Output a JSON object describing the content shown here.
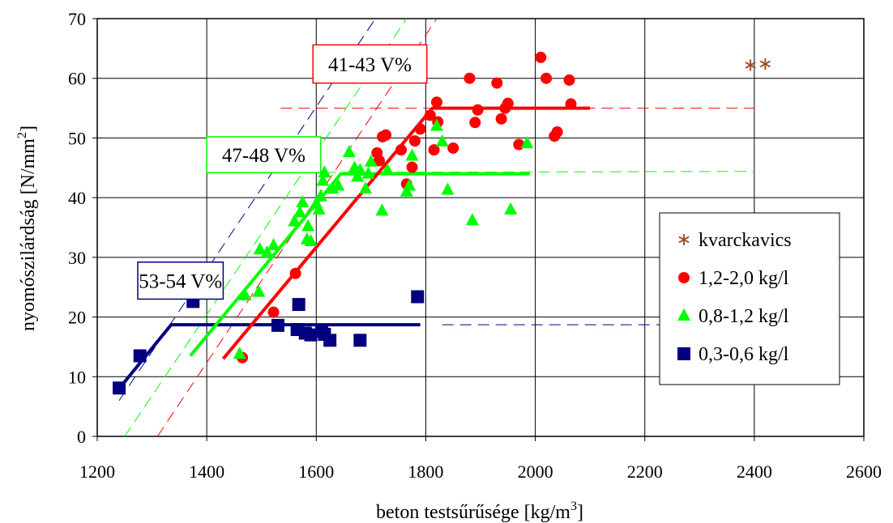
{
  "chart_data": {
    "type": "scatter",
    "xlabel": "beton testsűrűsége [kg/m",
    "xlabel_sup": "3",
    "xlabel_end": "]",
    "ylabel": "nyomószilárdság [N/mm",
    "ylabel_sup": "2",
    "ylabel_end": "]",
    "xlim": [
      1200,
      2600
    ],
    "ylim": [
      0,
      70
    ],
    "x_ticks": [
      "1200",
      "1400",
      "1600",
      "1800",
      "2000",
      "2200",
      "2400",
      "2600"
    ],
    "y_ticks": [
      "0",
      "10",
      "20",
      "30",
      "40",
      "50",
      "60",
      "70"
    ],
    "grid": true,
    "legend_position": "right",
    "series": [
      {
        "name": "kvarckavics",
        "marker": "asterisk",
        "color": "#a0522d",
        "points": [
          [
            2393,
            62.2
          ],
          [
            2420,
            62.4
          ]
        ]
      },
      {
        "name": "1,2-2,0 kg/l",
        "marker": "circle",
        "color": "#ff0000",
        "points": [
          [
            1465,
            13.2
          ],
          [
            1522,
            20.8
          ],
          [
            1562,
            27.3
          ],
          [
            1711,
            47.5
          ],
          [
            1715,
            46.2
          ],
          [
            1721,
            50.2
          ],
          [
            1727,
            50.5
          ],
          [
            1755,
            48.0
          ],
          [
            1765,
            42.3
          ],
          [
            1775,
            45.1
          ],
          [
            1780,
            49.5
          ],
          [
            1790,
            51.5
          ],
          [
            1808,
            53.8
          ],
          [
            1815,
            48.0
          ],
          [
            1820,
            56.0
          ],
          [
            1822,
            52.7
          ],
          [
            1850,
            48.3
          ],
          [
            1880,
            60.0
          ],
          [
            1890,
            52.6
          ],
          [
            1895,
            54.7
          ],
          [
            1930,
            59.2
          ],
          [
            1938,
            53.2
          ],
          [
            1945,
            55.0
          ],
          [
            1950,
            55.8
          ],
          [
            1970,
            48.9
          ],
          [
            2010,
            63.5
          ],
          [
            2020,
            60.0
          ],
          [
            2035,
            50.3
          ],
          [
            2040,
            51.0
          ],
          [
            2062,
            59.7
          ],
          [
            2065,
            55.7
          ]
        ]
      },
      {
        "name": "0,8-1,2 kg/l",
        "marker": "triangle",
        "color": "#00ff00",
        "points": [
          [
            1460,
            13.8
          ],
          [
            1470,
            23.6
          ],
          [
            1495,
            24.2
          ],
          [
            1497,
            31.3
          ],
          [
            1510,
            30.8
          ],
          [
            1522,
            32.0
          ],
          [
            1560,
            36.0
          ],
          [
            1570,
            37.5
          ],
          [
            1575,
            39.2
          ],
          [
            1583,
            33.0
          ],
          [
            1585,
            35.2
          ],
          [
            1590,
            32.7
          ],
          [
            1600,
            39.0
          ],
          [
            1605,
            38.0
          ],
          [
            1608,
            40.2
          ],
          [
            1612,
            42.8
          ],
          [
            1615,
            44.2
          ],
          [
            1630,
            41.5
          ],
          [
            1640,
            42.0
          ],
          [
            1660,
            47.6
          ],
          [
            1670,
            45.0
          ],
          [
            1675,
            43.5
          ],
          [
            1680,
            44.6
          ],
          [
            1690,
            41.5
          ],
          [
            1695,
            44.0
          ],
          [
            1700,
            46.0
          ],
          [
            1720,
            37.8
          ],
          [
            1730,
            44.6
          ],
          [
            1765,
            41.0
          ],
          [
            1770,
            42.0
          ],
          [
            1775,
            47.0
          ],
          [
            1820,
            52.0
          ],
          [
            1830,
            49.4
          ],
          [
            1840,
            41.3
          ],
          [
            1885,
            36.2
          ],
          [
            1955,
            38.0
          ],
          [
            1985,
            49.1
          ]
        ]
      },
      {
        "name": "0,3-0,6 kg/l",
        "marker": "square",
        "color": "#000080",
        "points": [
          [
            1240,
            8.1
          ],
          [
            1278,
            13.5
          ],
          [
            1375,
            22.6
          ],
          [
            1530,
            18.6
          ],
          [
            1565,
            17.9
          ],
          [
            1568,
            22.1
          ],
          [
            1580,
            17.3
          ],
          [
            1590,
            17.0
          ],
          [
            1610,
            17.6
          ],
          [
            1615,
            17.1
          ],
          [
            1625,
            16.1
          ],
          [
            1680,
            16.1
          ],
          [
            1785,
            23.4
          ]
        ]
      }
    ],
    "trend_lines": [
      {
        "group": "0,3-0,6 kg/l",
        "color": "#000080",
        "points": [
          [
            1240,
            8.0
          ],
          [
            1335,
            18.7
          ],
          [
            1790,
            18.7
          ]
        ]
      },
      {
        "group": "0,8-1,2 kg/l",
        "color": "#00ff00",
        "points": [
          [
            1370,
            13.5
          ],
          [
            1645,
            44.0
          ],
          [
            1990,
            44.0
          ]
        ]
      },
      {
        "group": "1,2-2,0 kg/l",
        "color": "#ff0000",
        "points": [
          [
            1430,
            13.0
          ],
          [
            1812,
            55.0
          ],
          [
            2100,
            55.0
          ]
        ]
      }
    ],
    "reference_lines": [
      {
        "color": "#000080",
        "points": [
          [
            1240,
            6.0
          ],
          [
            1708,
            70.0
          ]
        ]
      },
      {
        "color": "#00ff00",
        "points": [
          [
            1250,
            0.0
          ],
          [
            1765,
            70.0
          ]
        ]
      },
      {
        "color": "#ff0000",
        "points": [
          [
            1310,
            0.0
          ],
          [
            1820,
            70.0
          ]
        ]
      },
      {
        "color": "#ff0000",
        "points": [
          [
            1535,
            55.0
          ],
          [
            2400,
            55.0
          ]
        ]
      },
      {
        "color": "#00ff00",
        "points": [
          [
            1485,
            44.2
          ],
          [
            2400,
            44.4
          ]
        ]
      },
      {
        "color": "#000080",
        "points": [
          [
            1830,
            18.7
          ],
          [
            2230,
            18.7
          ]
        ]
      }
    ],
    "annotations": [
      {
        "text": "41-43 V%",
        "color": "#ff0000",
        "box_x": [
          1594,
          1802
        ],
        "box_y": [
          59.2,
          65.6
        ]
      },
      {
        "text": "47-48 V%",
        "color": "#00ff00",
        "box_x": [
          1400,
          1608
        ],
        "box_y": [
          44.2,
          50.2
        ]
      },
      {
        "text": "53-54 V%",
        "color": "#000080",
        "box_x": [
          1274,
          1430
        ],
        "box_y": [
          23.0,
          29.2
        ]
      }
    ]
  }
}
